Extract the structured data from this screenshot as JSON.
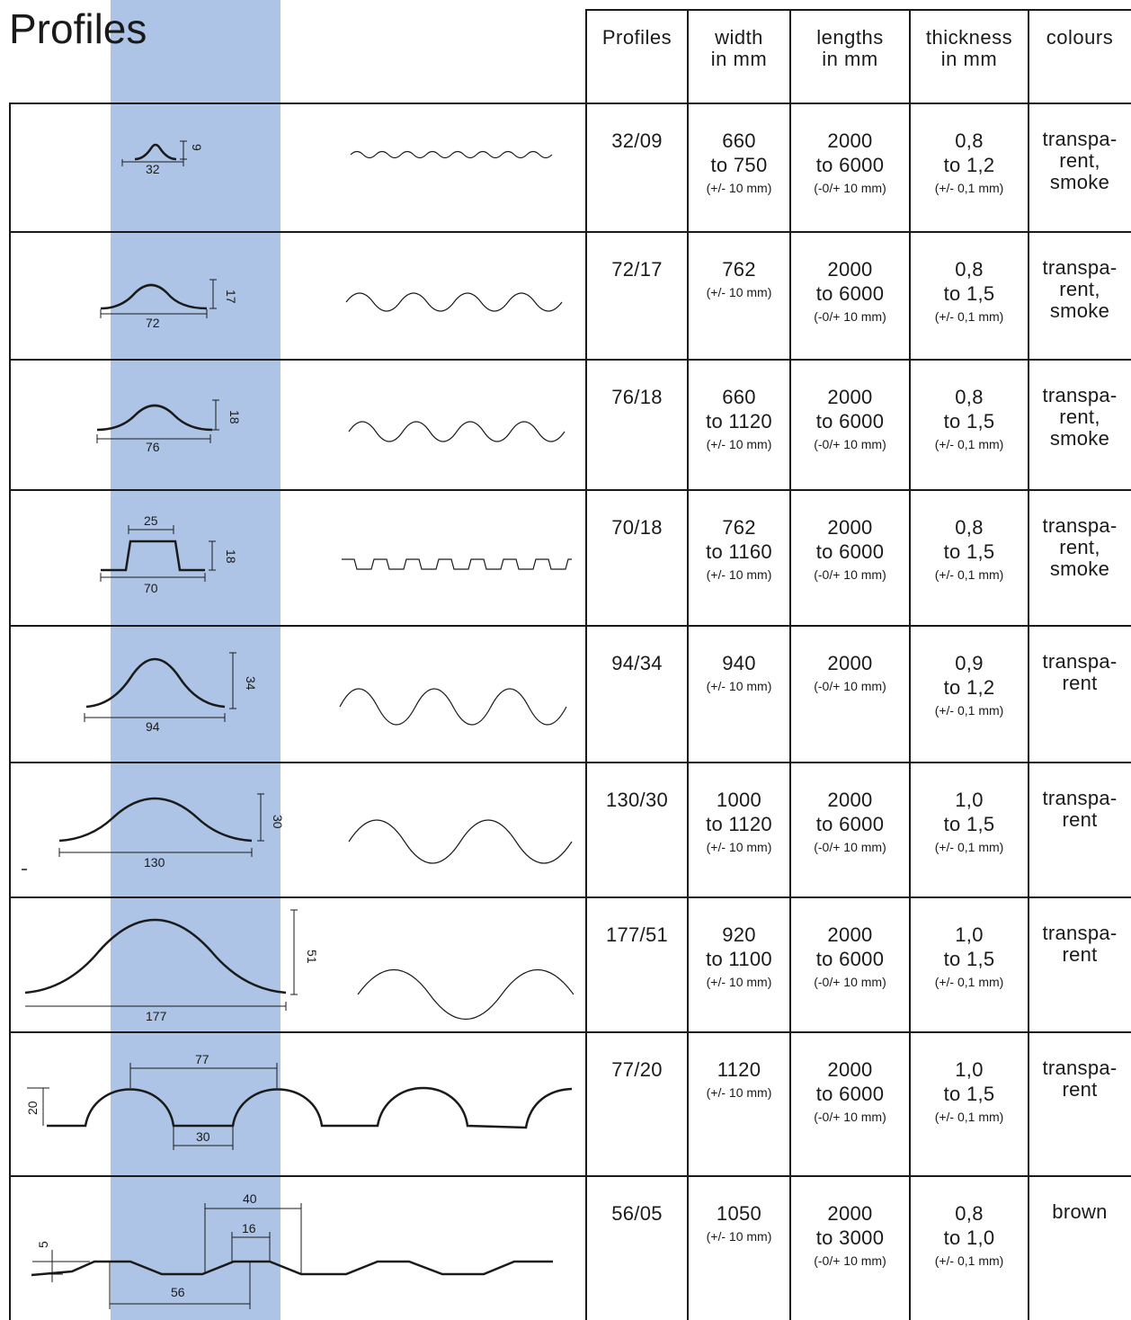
{
  "page": {
    "title": "Profiles"
  },
  "headers": {
    "profiles": "Profiles",
    "width": [
      "width",
      "in mm"
    ],
    "lengths": [
      "lengths",
      "in mm"
    ],
    "thickness": [
      "thickness",
      "in mm"
    ],
    "colours": "colours"
  },
  "rows": [
    {
      "profile": "32/09",
      "width": [
        "660",
        "to 750"
      ],
      "width_tol": "(+/- 10 mm)",
      "lengths": [
        "2000",
        "to 6000"
      ],
      "lengths_tol": "(-0/+ 10 mm)",
      "thickness": [
        "0,8",
        "to 1,2"
      ],
      "thickness_tol": "(+/- 0,1 mm)",
      "colours": [
        "transpa-",
        "rent,",
        "smoke"
      ],
      "dims": [
        "32",
        "9"
      ]
    },
    {
      "profile": "72/17",
      "width": [
        "762"
      ],
      "width_tol": "(+/- 10 mm)",
      "lengths": [
        "2000",
        "to 6000"
      ],
      "lengths_tol": "(-0/+ 10 mm)",
      "thickness": [
        "0,8",
        "to 1,5"
      ],
      "thickness_tol": "(+/- 0,1 mm)",
      "colours": [
        "transpa-",
        "rent,",
        "smoke"
      ],
      "dims": [
        "72",
        "17"
      ]
    },
    {
      "profile": "76/18",
      "width": [
        "660",
        "to 1120"
      ],
      "width_tol": "(+/- 10 mm)",
      "lengths": [
        "2000",
        "to 6000"
      ],
      "lengths_tol": "(-0/+ 10 mm)",
      "thickness": [
        "0,8",
        "to 1,5"
      ],
      "thickness_tol": "(+/- 0,1 mm)",
      "colours": [
        "transpa-",
        "rent,",
        "smoke"
      ],
      "dims": [
        "76",
        "18"
      ]
    },
    {
      "profile": "70/18",
      "width": [
        "762",
        "to 1160"
      ],
      "width_tol": "(+/- 10 mm)",
      "lengths": [
        "2000",
        "to 6000"
      ],
      "lengths_tol": "(-0/+ 10 mm)",
      "thickness": [
        "0,8",
        "to 1,5"
      ],
      "thickness_tol": "(+/- 0,1 mm)",
      "colours": [
        "transpa-",
        "rent,",
        "smoke"
      ],
      "dims": [
        "70",
        "18",
        "25"
      ]
    },
    {
      "profile": "94/34",
      "width": [
        "940"
      ],
      "width_tol": "(+/- 10 mm)",
      "lengths": [
        "2000"
      ],
      "lengths_tol": "(-0/+ 10 mm)",
      "thickness": [
        "0,9",
        "to 1,2"
      ],
      "thickness_tol": "(+/- 0,1 mm)",
      "colours": [
        "transpa-",
        "rent"
      ],
      "dims": [
        "94",
        "34"
      ]
    },
    {
      "profile": "130/30",
      "width": [
        "1000",
        "to 1120"
      ],
      "width_tol": "(+/- 10 mm)",
      "lengths": [
        "2000",
        "to 6000"
      ],
      "lengths_tol": "(-0/+ 10 mm)",
      "thickness": [
        "1,0",
        "to 1,5"
      ],
      "thickness_tol": "(+/- 0,1 mm)",
      "colours": [
        "transpa-",
        "rent"
      ],
      "dims": [
        "130",
        "30"
      ]
    },
    {
      "profile": "177/51",
      "width": [
        "920",
        "to 1100"
      ],
      "width_tol": "(+/- 10 mm)",
      "lengths": [
        "2000",
        "to 6000"
      ],
      "lengths_tol": "(-0/+ 10 mm)",
      "thickness": [
        "1,0",
        "to 1,5"
      ],
      "thickness_tol": "(+/- 0,1 mm)",
      "colours": [
        "transpa-",
        "rent"
      ],
      "dims": [
        "177",
        "51"
      ]
    },
    {
      "profile": "77/20",
      "width": [
        "1120"
      ],
      "width_tol": "(+/- 10 mm)",
      "lengths": [
        "2000",
        "to 6000"
      ],
      "lengths_tol": "(-0/+ 10 mm)",
      "thickness": [
        "1,0",
        "to 1,5"
      ],
      "thickness_tol": "(+/- 0,1 mm)",
      "colours": [
        "transpa-",
        "rent"
      ],
      "dims": [
        "77",
        "20",
        "30"
      ]
    },
    {
      "profile": "56/05",
      "width": [
        "1050"
      ],
      "width_tol": "(+/- 10 mm)",
      "lengths": [
        "2000",
        "to 3000"
      ],
      "lengths_tol": "(-0/+ 10 mm)",
      "thickness": [
        "0,8",
        "to 1,0"
      ],
      "thickness_tol": "(+/- 0,1 mm)",
      "colours": [
        "brown"
      ],
      "dims": [
        "56",
        "5",
        "40",
        "16"
      ]
    }
  ],
  "colors": {
    "band": "#aec4e6",
    "ink": "#1a1a1a"
  }
}
